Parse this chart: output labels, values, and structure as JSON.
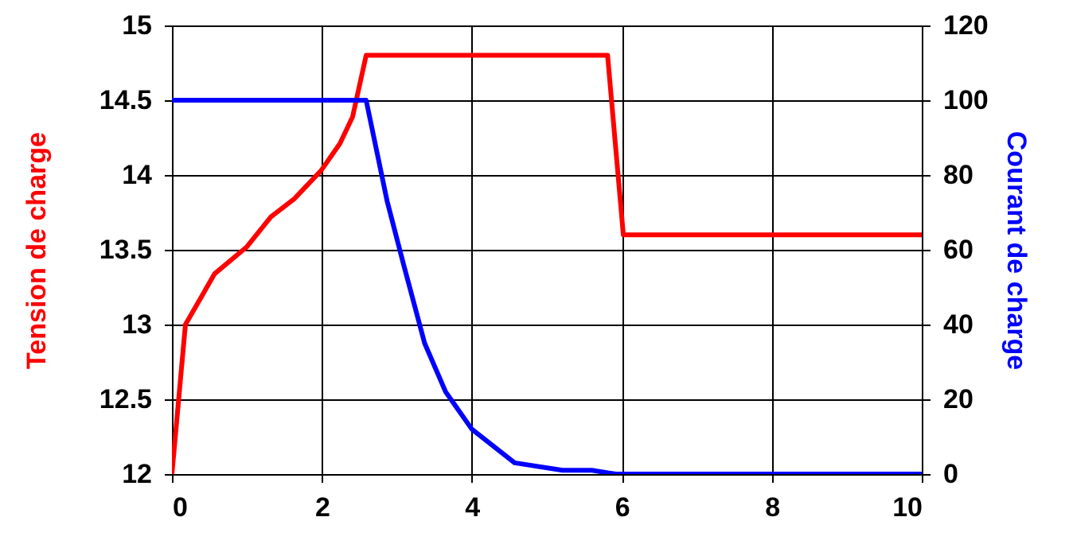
{
  "chart_data": {
    "type": "line",
    "ylabel": "Tension de charge",
    "y2label": "Courant de charge",
    "xlim": [
      0,
      10
    ],
    "xticks": [
      0,
      2,
      4,
      6,
      8,
      10
    ],
    "ylim": [
      12,
      15
    ],
    "yticks": [
      12,
      12.5,
      13,
      13.5,
      14,
      14.5,
      15
    ],
    "y2lim": [
      0,
      120
    ],
    "y2ticks": [
      0,
      20,
      40,
      60,
      80,
      100,
      120
    ],
    "grid": true,
    "marker": "none",
    "line_style": "solid",
    "series": [
      {
        "color": "#ff0000",
        "x": [
          0,
          0.18,
          0.57,
          1.0,
          1.32,
          1.63,
          1.99,
          2.24,
          2.41,
          2.59,
          5.81,
          6.02,
          10
        ],
        "values": [
          12,
          13,
          13.34,
          13.52,
          13.72,
          13.84,
          14.03,
          14.21,
          14.39,
          14.8,
          14.8,
          13.6,
          13.6
        ]
      },
      {
        "color": "#0000ff",
        "axis": "y2",
        "x": [
          0,
          2.59,
          2.87,
          3.09,
          3.37,
          3.65,
          4.0,
          4.57,
          5.21,
          5.6,
          5.92,
          10
        ],
        "values": [
          100,
          100,
          73,
          56,
          35,
          22,
          12,
          3,
          1,
          1,
          0,
          0
        ]
      }
    ]
  }
}
